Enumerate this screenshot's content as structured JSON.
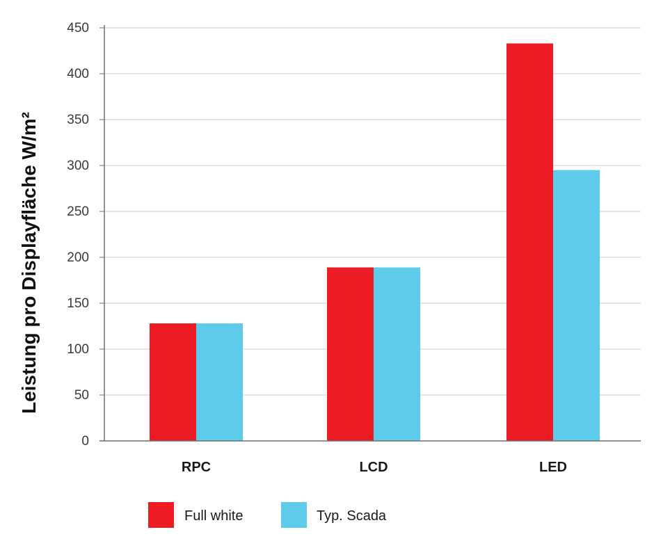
{
  "chart_data": {
    "type": "bar",
    "title": "",
    "xlabel": "",
    "ylabel": "Leistung pro Displayfläche W/m²",
    "categories": [
      "RPC",
      "LCD",
      "LED"
    ],
    "series": [
      {
        "name": "Full white",
        "color": "#ed1c24",
        "values": [
          128,
          189,
          433
        ]
      },
      {
        "name": "Typ. Scada",
        "color": "#5ecbea",
        "values": [
          128,
          189,
          295
        ]
      }
    ],
    "ylim": [
      0,
      450
    ],
    "yticks": [
      0,
      50,
      100,
      150,
      200,
      250,
      300,
      350,
      400,
      450
    ],
    "grid": true,
    "legend": "bottom"
  }
}
